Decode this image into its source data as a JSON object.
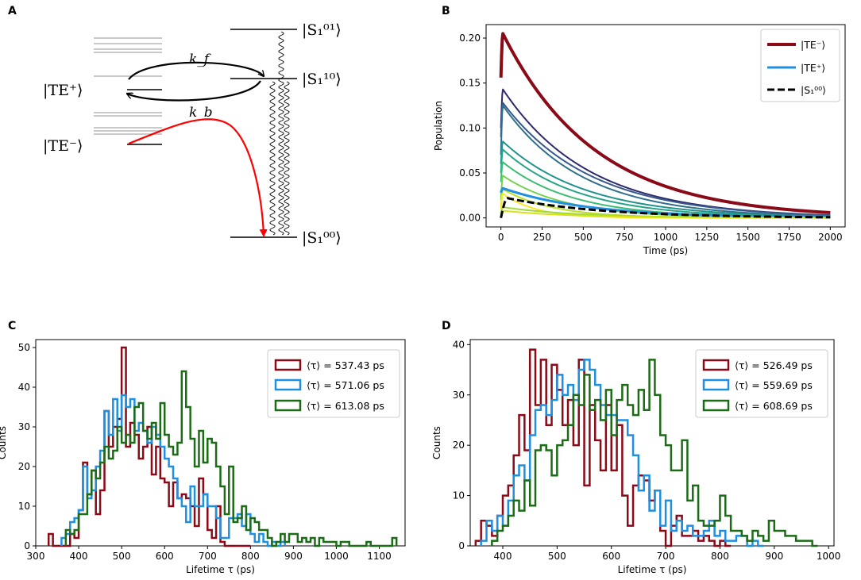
{
  "panel_labels": {
    "a": "A",
    "b": "B",
    "c": "C",
    "d": "D"
  },
  "colors": {
    "dark_red": "#8b0a17",
    "blue": "#1f8fe0",
    "green": "#1c6b16",
    "black": "#000000",
    "red_arrow": "#ff0000",
    "grey_levels": "#b8b8b8"
  },
  "diagram": {
    "te_plus": "|TE⁺⟩",
    "te_minus": "|TE⁻⟩",
    "s01": "|S₁⁰¹⟩",
    "s10": "|S₁¹⁰⟩",
    "s00": "|S₁⁰⁰⟩",
    "kf": "k_f",
    "kb": "k_b"
  },
  "chart_data": [
    {
      "id": "B",
      "type": "line",
      "xlabel": "Time (ps)",
      "ylabel": "Population",
      "xlim": [
        -90,
        2090
      ],
      "ylim": [
        -0.01,
        0.215
      ],
      "xticks": [
        0,
        250,
        500,
        750,
        1000,
        1250,
        1500,
        1750,
        2000
      ],
      "yticks": [
        0.0,
        0.05,
        0.1,
        0.15,
        0.2
      ],
      "ytick_labels": [
        "0.00",
        "0.05",
        "0.10",
        "0.15",
        "0.20"
      ],
      "legend": [
        "|TE⁻⟩",
        "|TE⁺⟩",
        "|S₁⁰⁰⟩"
      ],
      "legend_position": "top-right",
      "series": [
        {
          "name": "|TE⁻⟩",
          "kind": "rise_decay",
          "y0": 0.156,
          "peak": 0.205,
          "tau": 560,
          "color": "#8b0a17",
          "width": 4
        },
        {
          "name": "state-1",
          "kind": "rise_decay",
          "y0": 0.1,
          "peak": 0.143,
          "tau": 520,
          "color": "#2d2a6e",
          "width": 2
        },
        {
          "name": "state-2",
          "kind": "rise_decay",
          "y0": 0.09,
          "peak": 0.128,
          "tau": 530,
          "color": "#38588c",
          "width": 2
        },
        {
          "name": "state-3",
          "kind": "rise_decay",
          "y0": 0.07,
          "peak": 0.125,
          "tau": 480,
          "color": "#2e6f8e",
          "width": 2
        },
        {
          "name": "state-4",
          "kind": "rise_decay",
          "y0": 0.06,
          "peak": 0.085,
          "tau": 500,
          "color": "#22928c",
          "width": 2
        },
        {
          "name": "state-5",
          "kind": "rise_decay",
          "y0": 0.05,
          "peak": 0.076,
          "tau": 460,
          "color": "#27a487",
          "width": 2
        },
        {
          "name": "state-6",
          "kind": "rise_decay",
          "y0": 0.04,
          "peak": 0.062,
          "tau": 420,
          "color": "#3dbc74",
          "width": 2
        },
        {
          "name": "state-7",
          "kind": "rise_decay",
          "y0": 0.02,
          "peak": 0.047,
          "tau": 380,
          "color": "#7ad151",
          "width": 2
        },
        {
          "name": "state-8",
          "kind": "rise_decay",
          "y0": 0.01,
          "peak": 0.032,
          "tau": 300,
          "color": "#bddf26",
          "width": 2
        },
        {
          "name": "state-9",
          "kind": "rise_decay",
          "y0": 0.01,
          "peak": 0.027,
          "tau": 200,
          "color": "#fde725",
          "width": 2
        },
        {
          "name": "|TE⁺⟩",
          "kind": "rise_decay",
          "y0": 0.028,
          "peak": 0.033,
          "tau": 520,
          "color": "#1f8fe0",
          "width": 3
        },
        {
          "name": "state-10",
          "kind": "rise_decay",
          "y0": 0.005,
          "peak": 0.012,
          "tau": 450,
          "color": "#a0da39",
          "width": 2
        },
        {
          "name": "state-11",
          "kind": "rise_decay",
          "y0": 0.003,
          "peak": 0.008,
          "tau": 420,
          "color": "#d8e219",
          "width": 2
        },
        {
          "name": "|S₁⁰⁰⟩",
          "kind": "rise_decay",
          "y0": 0.0,
          "peak": 0.022,
          "tau": 580,
          "rise": 40,
          "color": "#000000",
          "width": 3,
          "dashed": true
        }
      ]
    },
    {
      "id": "C",
      "type": "histogram",
      "xlabel": "Lifetime τ (ps)",
      "ylabel": "Counts",
      "xlim": [
        300,
        1160
      ],
      "ylim": [
        0,
        52
      ],
      "xticks": [
        300,
        400,
        500,
        600,
        700,
        800,
        900,
        1000,
        1100
      ],
      "yticks": [
        0,
        10,
        20,
        30,
        40,
        50
      ],
      "legend_position": "top-right",
      "series": [
        {
          "name": "⟨τ⟩ = 537.43 ps",
          "color": "#8b0a17",
          "edges": [
            330,
            340,
            350,
            360,
            370,
            380,
            390,
            400,
            410,
            420,
            430,
            440,
            450,
            460,
            470,
            480,
            490,
            500,
            510,
            520,
            530,
            540,
            550,
            560,
            570,
            580,
            590,
            600,
            610,
            620,
            630,
            640,
            650,
            660,
            670,
            680,
            690,
            700,
            710,
            720,
            730,
            740,
            750,
            760,
            770,
            780,
            790,
            800
          ],
          "counts": [
            3,
            0,
            0,
            0,
            0,
            3,
            2,
            9,
            21,
            13,
            19,
            8,
            14,
            34,
            25,
            30,
            32,
            50,
            25,
            31,
            28,
            22,
            25,
            30,
            18,
            25,
            17,
            16,
            10,
            16,
            12,
            13,
            12,
            10,
            5,
            17,
            13,
            4,
            2,
            10,
            1,
            0,
            0,
            0,
            0,
            0,
            0
          ]
        },
        {
          "name": "⟨τ⟩ = 571.06 ps",
          "color": "#1f8fe0",
          "edges": [
            360,
            370,
            380,
            390,
            400,
            410,
            420,
            430,
            440,
            450,
            460,
            470,
            480,
            490,
            500,
            510,
            520,
            530,
            540,
            550,
            560,
            570,
            580,
            590,
            600,
            610,
            620,
            630,
            640,
            650,
            660,
            670,
            680,
            690,
            700,
            710,
            720,
            730,
            740,
            750,
            760,
            770,
            780,
            790,
            800,
            810,
            820,
            830,
            840,
            850,
            860,
            870,
            880
          ],
          "counts": [
            2,
            3,
            6,
            7,
            9,
            20,
            12,
            14,
            20,
            24,
            34,
            28,
            37,
            29,
            38,
            35,
            37,
            29,
            31,
            29,
            26,
            30,
            28,
            25,
            22,
            20,
            17,
            12,
            10,
            6,
            15,
            10,
            10,
            13,
            10,
            10,
            7,
            2,
            2,
            7,
            7,
            8,
            5,
            8,
            3,
            1,
            3,
            1,
            0,
            1,
            0,
            1
          ]
        },
        {
          "name": "⟨τ⟩ = 613.08 ps",
          "color": "#1c6b16",
          "edges": [
            370,
            380,
            390,
            400,
            410,
            420,
            430,
            440,
            450,
            460,
            470,
            480,
            490,
            500,
            510,
            520,
            530,
            540,
            550,
            560,
            570,
            580,
            590,
            600,
            610,
            620,
            630,
            640,
            650,
            660,
            670,
            680,
            690,
            700,
            710,
            720,
            730,
            740,
            750,
            760,
            770,
            780,
            790,
            800,
            810,
            820,
            830,
            840,
            850,
            860,
            870,
            880,
            890,
            900,
            910,
            920,
            930,
            940,
            950,
            960,
            970,
            980,
            990,
            1000,
            1010,
            1020,
            1030,
            1040,
            1050,
            1060,
            1070,
            1080,
            1090,
            1100,
            1110,
            1120,
            1130,
            1140
          ],
          "counts": [
            4,
            3,
            4,
            8,
            8,
            13,
            19,
            17,
            21,
            25,
            22,
            24,
            30,
            26,
            28,
            26,
            35,
            36,
            29,
            27,
            31,
            27,
            36,
            28,
            25,
            23,
            26,
            44,
            35,
            27,
            20,
            29,
            21,
            27,
            26,
            20,
            15,
            8,
            20,
            6,
            7,
            10,
            4,
            7,
            6,
            4,
            4,
            2,
            0,
            1,
            3,
            1,
            3,
            3,
            1,
            2,
            1,
            2,
            0,
            2,
            1,
            1,
            1,
            0,
            1,
            1,
            0,
            0,
            0,
            0,
            1,
            0,
            0,
            0,
            0,
            0,
            2
          ]
        }
      ]
    },
    {
      "id": "D",
      "type": "histogram",
      "xlabel": "Lifetime τ (ps)",
      "ylabel": "Counts",
      "xlim": [
        340,
        1010
      ],
      "ylim": [
        0,
        41
      ],
      "xticks": [
        400,
        500,
        600,
        700,
        800,
        900,
        1000
      ],
      "yticks": [
        0,
        10,
        20,
        30,
        40
      ],
      "legend_position": "top-right",
      "series": [
        {
          "name": "⟨τ⟩ = 526.49 ps",
          "color": "#8b0a17",
          "edges": [
            350,
            360,
            370,
            380,
            390,
            400,
            410,
            420,
            430,
            440,
            450,
            460,
            470,
            480,
            490,
            500,
            510,
            520,
            530,
            540,
            550,
            560,
            570,
            580,
            590,
            600,
            610,
            620,
            630,
            640,
            650,
            660,
            670,
            680,
            690,
            700,
            710,
            720,
            730,
            740,
            750,
            760,
            770,
            780,
            790,
            800,
            810,
            820
          ],
          "counts": [
            1,
            5,
            4,
            2,
            6,
            10,
            12,
            18,
            26,
            19,
            39,
            28,
            37,
            24,
            36,
            31,
            24,
            29,
            20,
            37,
            12,
            28,
            21,
            15,
            28,
            15,
            24,
            10,
            4,
            12,
            14,
            13,
            9,
            11,
            3,
            0,
            4,
            6,
            2,
            2,
            3,
            1,
            2,
            1,
            0,
            1,
            0
          ]
        },
        {
          "name": "⟨τ⟩ = 559.69 ps",
          "color": "#1f8fe0",
          "edges": [
            360,
            370,
            380,
            390,
            400,
            410,
            420,
            430,
            440,
            450,
            460,
            470,
            480,
            490,
            500,
            510,
            520,
            530,
            540,
            550,
            560,
            570,
            580,
            590,
            600,
            610,
            620,
            630,
            640,
            650,
            660,
            670,
            680,
            690,
            700,
            710,
            720,
            730,
            740,
            750,
            760,
            770,
            780,
            790,
            800,
            810,
            820,
            830,
            840,
            850,
            860,
            870,
            880
          ],
          "counts": [
            1,
            5,
            3,
            6,
            4,
            9,
            14,
            16,
            13,
            22,
            27,
            28,
            26,
            29,
            34,
            30,
            32,
            29,
            35,
            37,
            35,
            32,
            28,
            26,
            26,
            25,
            25,
            22,
            18,
            11,
            14,
            7,
            11,
            4,
            9,
            3,
            5,
            3,
            4,
            2,
            2,
            3,
            5,
            2,
            3,
            1,
            1,
            2,
            2,
            0,
            1,
            0
          ]
        },
        {
          "name": "⟨τ⟩ = 608.69 ps",
          "color": "#1c6b16",
          "edges": [
            380,
            390,
            400,
            410,
            420,
            430,
            440,
            450,
            460,
            470,
            480,
            490,
            500,
            510,
            520,
            530,
            540,
            550,
            560,
            570,
            580,
            590,
            600,
            610,
            620,
            630,
            640,
            650,
            660,
            670,
            680,
            690,
            700,
            710,
            720,
            730,
            740,
            750,
            760,
            770,
            780,
            790,
            800,
            810,
            820,
            830,
            840,
            850,
            860,
            870,
            880,
            890,
            900,
            910,
            920,
            930,
            940,
            950,
            960,
            970,
            980
          ],
          "counts": [
            1,
            3,
            4,
            6,
            9,
            7,
            13,
            8,
            19,
            20,
            19,
            14,
            20,
            21,
            24,
            30,
            28,
            34,
            27,
            29,
            25,
            31,
            22,
            29,
            32,
            28,
            26,
            31,
            27,
            37,
            30,
            22,
            20,
            15,
            15,
            21,
            9,
            12,
            5,
            4,
            4,
            5,
            10,
            6,
            3,
            3,
            2,
            1,
            3,
            2,
            1,
            5,
            3,
            3,
            2,
            2,
            1,
            1,
            1,
            0
          ]
        }
      ]
    }
  ]
}
